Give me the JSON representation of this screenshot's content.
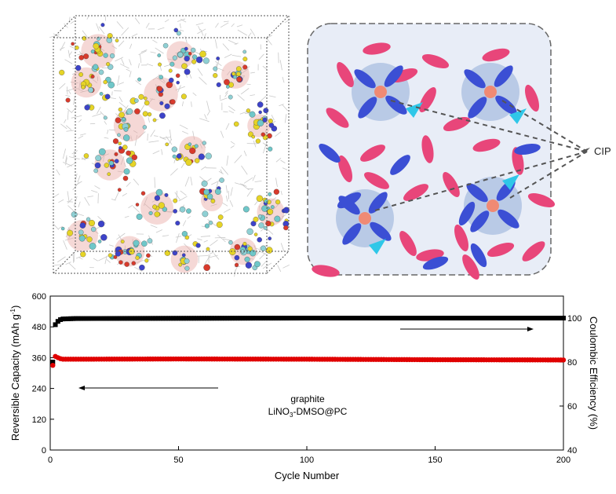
{
  "figure": {
    "cip_label": "CIP",
    "colors": {
      "background_panel": "#e8edf7",
      "solvent_pink": "#e8467a",
      "anion_blue": "#3b4fd4",
      "cation": "#f08a74",
      "triangle": "#2fc7e8",
      "capacity_series": "#e00000",
      "efficiency_series": "#000000"
    }
  },
  "chart_data": {
    "type": "scatter",
    "title": "",
    "xlabel": "Cycle Number",
    "ylabel": "Reversible Capacity (mAh g",
    "ylabel_sup": "-1",
    "ylabel_close": ")",
    "y2label": "Coulombic Efficiency (%)",
    "xlim": [
      0,
      200
    ],
    "ylim": [
      0,
      600
    ],
    "y2lim": [
      40,
      110
    ],
    "x_ticks": [
      "0",
      "50",
      "100",
      "150",
      "200"
    ],
    "y_ticks": [
      "0",
      "120",
      "240",
      "360",
      "480",
      "600"
    ],
    "y2_ticks": [
      "40",
      "60",
      "80",
      "100"
    ],
    "annotation_material": "graphite",
    "annotation_electrolyte_pre": "LiNO",
    "annotation_electrolyte_sub": "3",
    "annotation_electrolyte_post": "-DMSO@PC",
    "series": [
      {
        "name": "Reversible Capacity",
        "axis": "left",
        "color": "#e00000",
        "points": [
          [
            1,
            330
          ],
          [
            2,
            365
          ],
          [
            3,
            360
          ],
          [
            4,
            356
          ],
          [
            5,
            354
          ],
          [
            10,
            354
          ],
          [
            50,
            355
          ],
          [
            100,
            354
          ],
          [
            150,
            352
          ],
          [
            200,
            351
          ]
        ]
      },
      {
        "name": "Coulombic Efficiency",
        "axis": "right",
        "color": "#000000",
        "points": [
          [
            1,
            80
          ],
          [
            2,
            97
          ],
          [
            3,
            98.5
          ],
          [
            4,
            99.3
          ],
          [
            5,
            99.6
          ],
          [
            10,
            99.8
          ],
          [
            50,
            99.9
          ],
          [
            100,
            100
          ],
          [
            150,
            100
          ],
          [
            200,
            100
          ]
        ]
      }
    ]
  }
}
